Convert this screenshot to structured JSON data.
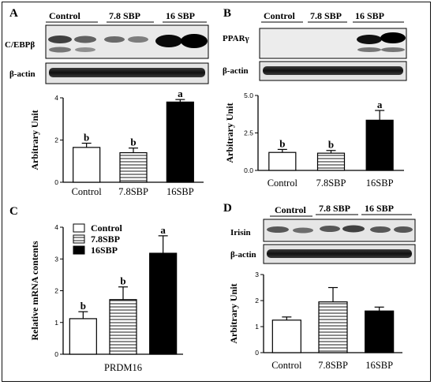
{
  "panels": {
    "A": {
      "letter": "A",
      "blot_headers": [
        "Control",
        "7.8 SBP",
        "16 SBP"
      ],
      "blot_rows": [
        "C/EBPβ",
        "β-actin"
      ]
    },
    "B": {
      "letter": "B",
      "blot_headers": [
        "Control",
        "7.8 SBP",
        "16 SBP"
      ],
      "blot_rows": [
        "PPARγ",
        "β-actin"
      ]
    },
    "C": {
      "letter": "C"
    },
    "D": {
      "letter": "D",
      "blot_headers": [
        "Control",
        "7.8 SBP",
        "16 SBP"
      ],
      "blot_rows": [
        "Irisin",
        "β-actin"
      ]
    }
  },
  "colors": {
    "control": "#ffffff",
    "sbp78": "stripes",
    "sbp16": "#000000",
    "ink": "#000000"
  },
  "chart_data": [
    {
      "id": "A",
      "type": "bar",
      "categories": [
        "Control",
        "7.8SBP",
        "16SBP"
      ],
      "values": [
        1.65,
        1.4,
        3.8
      ],
      "errors": [
        0.2,
        0.22,
        0.12
      ],
      "labels": [
        "b",
        "b",
        "a"
      ],
      "ylabel": "Arbitrary Unit",
      "ylim": [
        0,
        4
      ],
      "yticks": [
        "0",
        "2",
        "4"
      ],
      "grid": false
    },
    {
      "id": "B",
      "type": "bar",
      "categories": [
        "Control",
        "7.8SBP",
        "16SBP"
      ],
      "values": [
        1.2,
        1.15,
        3.35
      ],
      "errors": [
        0.2,
        0.18,
        0.65
      ],
      "labels": [
        "b",
        "b",
        "a"
      ],
      "ylabel": "Arbitrary Unit",
      "ylim": [
        0,
        5
      ],
      "yticks": [
        "0.0",
        "2.5",
        "5.0"
      ],
      "grid": false
    },
    {
      "id": "C",
      "type": "bar",
      "categories": [
        "Control",
        "7.8SBP",
        "16SBP"
      ],
      "xlabel": "PRDM16",
      "values": [
        1.12,
        1.72,
        3.18
      ],
      "errors": [
        0.22,
        0.4,
        0.55
      ],
      "labels": [
        "b",
        "b",
        "a"
      ],
      "ylabel": "Relative mRNA contents",
      "ylim": [
        0,
        4
      ],
      "yticks": [
        "0",
        "1",
        "2",
        "3",
        "4"
      ],
      "legend": {
        "placement": "top-left",
        "entries": [
          "Control",
          "7.8SBP",
          "16SBP"
        ]
      },
      "grid": false
    },
    {
      "id": "D",
      "type": "bar",
      "categories": [
        "Control",
        "7.8SBP",
        "16SBP"
      ],
      "values": [
        1.25,
        1.95,
        1.6
      ],
      "errors": [
        0.12,
        0.55,
        0.15
      ],
      "labels": [
        "",
        "",
        ""
      ],
      "ylabel": "Arbitrary Unit",
      "ylim": [
        0,
        3
      ],
      "yticks": [
        "0",
        "1",
        "2",
        "3"
      ],
      "grid": false
    }
  ]
}
